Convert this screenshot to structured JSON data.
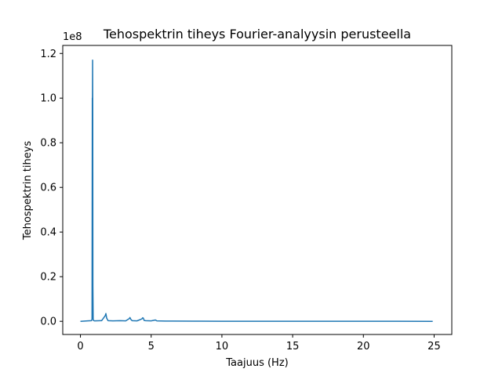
{
  "chart_data": {
    "type": "line",
    "title": "Tehospektrin tiheys Fourier-analyysin perusteella",
    "xlabel": "Taajuus (Hz)",
    "ylabel": "Tehospektrin tiheys",
    "y_offset_text": "1e8",
    "xlim": [
      -1.25,
      26.25
    ],
    "ylim": [
      -0.059,
      1.236
    ],
    "y_scale_factor": 100000000,
    "x_ticks": [
      0,
      5,
      10,
      15,
      20,
      25
    ],
    "x_tick_labels": [
      "0",
      "5",
      "10",
      "15",
      "20",
      "25"
    ],
    "y_ticks": [
      0.0,
      0.2,
      0.4,
      0.6,
      0.8,
      1.0,
      1.2
    ],
    "y_tick_labels": [
      "0.0",
      "0.2",
      "0.4",
      "0.6",
      "0.8",
      "1.0",
      "1.2"
    ],
    "grid": false,
    "legend": "none",
    "series_color": "#1f77b4",
    "series": [
      {
        "x": [
          0.0,
          0.5,
          0.78,
          0.82,
          0.84,
          0.85,
          0.86,
          0.87,
          0.88,
          0.9,
          0.92,
          0.95,
          1.0,
          1.5,
          1.75,
          1.8,
          1.85,
          1.95,
          2.3,
          2.8,
          3.2,
          3.45,
          3.5,
          3.55,
          3.65,
          4.0,
          4.35,
          4.4,
          4.45,
          4.5,
          4.6,
          5.0,
          5.3,
          5.4,
          6.0,
          6.5,
          8.0,
          10.0,
          15.0,
          20.0,
          24.9
        ],
        "y": [
          0.0,
          0.002,
          0.003,
          0.01,
          1.0,
          0.96,
          1.17,
          0.9,
          0.16,
          0.01,
          0.004,
          0.003,
          0.002,
          0.003,
          0.025,
          0.035,
          0.015,
          0.003,
          0.002,
          0.003,
          0.002,
          0.012,
          0.017,
          0.01,
          0.003,
          0.002,
          0.011,
          0.016,
          0.014,
          0.004,
          0.003,
          0.002,
          0.006,
          0.002,
          0.001,
          0.001,
          0.0005,
          0.0003,
          0.0002,
          0.0001,
          0.0
        ]
      }
    ]
  }
}
